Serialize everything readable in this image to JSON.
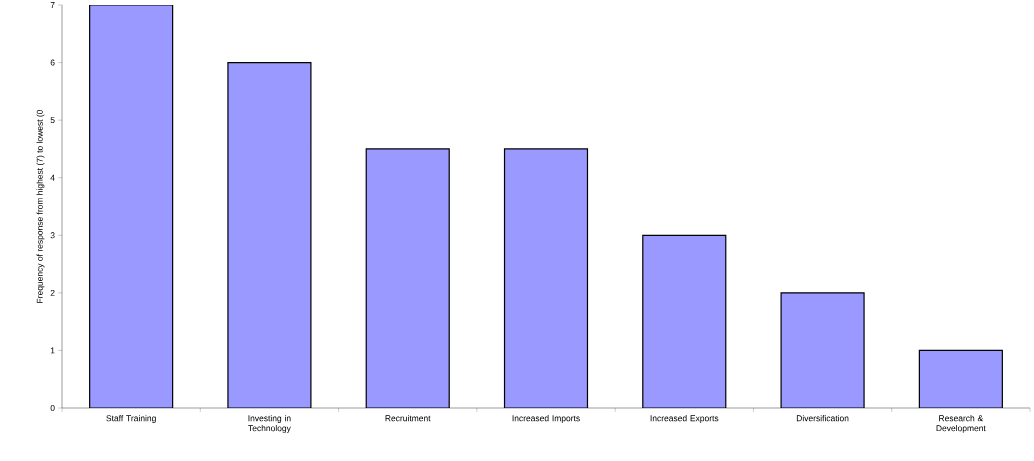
{
  "chart_data": {
    "type": "bar",
    "ylabel": "Frequency of response from highest (7) to lowest (0",
    "categories": [
      "Staff Training",
      "Investing in Technology",
      "Recruitment",
      "Increased Imports",
      "Increased Exports",
      "Diversification",
      "Research & Development"
    ],
    "values": [
      7,
      6,
      4.5,
      4.5,
      3,
      2,
      1
    ],
    "color": "#9999ff",
    "ylim": [
      0,
      7
    ],
    "yticks": [
      0,
      1,
      2,
      3,
      4,
      5,
      6,
      7
    ],
    "grid": false
  }
}
